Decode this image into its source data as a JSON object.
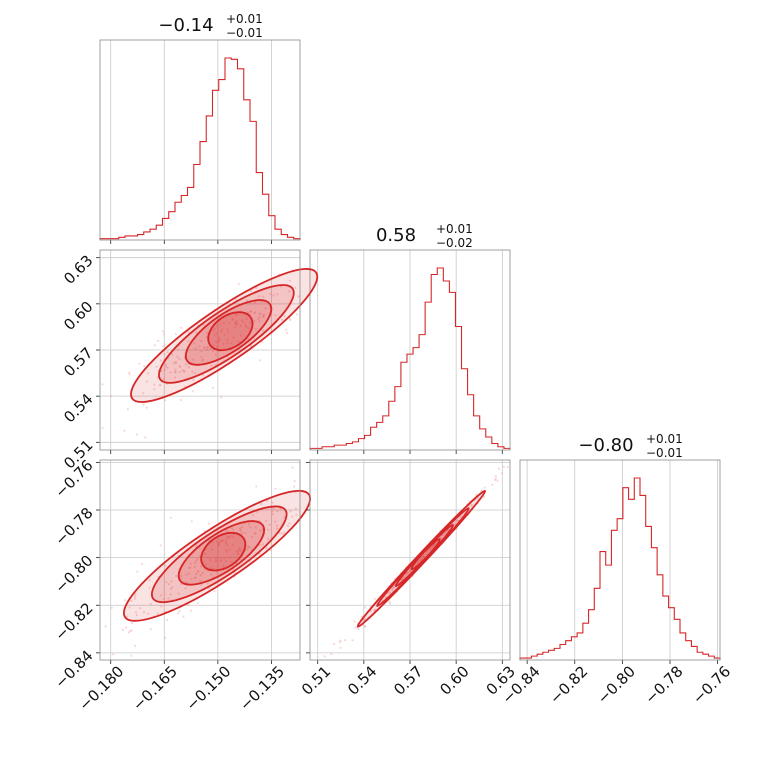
{
  "chart_data": {
    "type": "corner",
    "color": "#d62728",
    "parameters": [
      {
        "title": {
          "value": "−0.14",
          "upper": "+0.01",
          "lower": "−0.01"
        },
        "range": [
          -0.183,
          -0.127
        ],
        "ticks": [
          -0.18,
          -0.165,
          -0.15,
          -0.135
        ],
        "tick_labels": [
          "−0.180",
          "−0.165",
          "−0.150",
          "−0.135"
        ],
        "hist_counts": [
          1,
          1,
          1,
          2,
          3,
          3,
          4,
          6,
          8,
          11,
          16,
          21,
          28,
          33,
          39,
          56,
          73,
          92,
          111,
          119,
          135,
          134,
          127,
          104,
          88,
          50,
          34,
          18,
          8,
          4,
          2,
          1
        ]
      },
      {
        "title": {
          "value": "0.58",
          "upper": "+0.01",
          "lower": "−0.02"
        },
        "range": [
          0.505,
          0.635
        ],
        "ticks": [
          0.51,
          0.54,
          0.57,
          0.6,
          0.63
        ],
        "tick_labels": [
          "0.51",
          "0.54",
          "0.57",
          "0.60",
          "0.63"
        ],
        "hist_counts": [
          1,
          1,
          2,
          2,
          3,
          3,
          4,
          5,
          7,
          9,
          14,
          17,
          21,
          30,
          39,
          54,
          59,
          63,
          71,
          91,
          108,
          112,
          104,
          97,
          76,
          50,
          34,
          21,
          13,
          8,
          4,
          2,
          1
        ]
      },
      {
        "title": {
          "value": "−0.80",
          "upper": "+0.01",
          "lower": "−0.01"
        },
        "range": [
          -0.843,
          -0.759
        ],
        "ticks": [
          -0.84,
          -0.82,
          -0.8,
          -0.78,
          -0.76
        ],
        "tick_labels": [
          "−0.84",
          "−0.82",
          "−0.80",
          "−0.78",
          "−0.76"
        ],
        "hist_counts": [
          1,
          1,
          2,
          3,
          4,
          5,
          6,
          8,
          10,
          12,
          14,
          19,
          26,
          37,
          56,
          49,
          67,
          73,
          89,
          83,
          94,
          85,
          69,
          58,
          44,
          33,
          27,
          21,
          14,
          10,
          7,
          4,
          3,
          2,
          1
        ]
      }
    ],
    "pairs": [
      {
        "x_param": 0,
        "y_param": 1,
        "center": [
          -0.146,
          0.583
        ],
        "major_axis": [
          0.028,
          0.0445
        ],
        "minor_half_width": 0.003,
        "contour_scales": [
          1.0,
          0.72,
          0.45,
          0.22
        ]
      },
      {
        "x_param": 0,
        "y_param": 2,
        "center": [
          -0.148,
          -0.797
        ],
        "major_axis": [
          0.028,
          0.028
        ],
        "minor_half_width": 0.003,
        "contour_scales": [
          1.0,
          0.72,
          0.45,
          0.22
        ]
      },
      {
        "x_param": 1,
        "y_param": 2,
        "center": [
          0.581,
          -0.798
        ],
        "major_axis": [
          0.045,
          0.031
        ],
        "minor_half_width": 0.0012,
        "contour_scales": [
          1.0,
          0.72,
          0.45,
          0.22
        ]
      }
    ]
  }
}
